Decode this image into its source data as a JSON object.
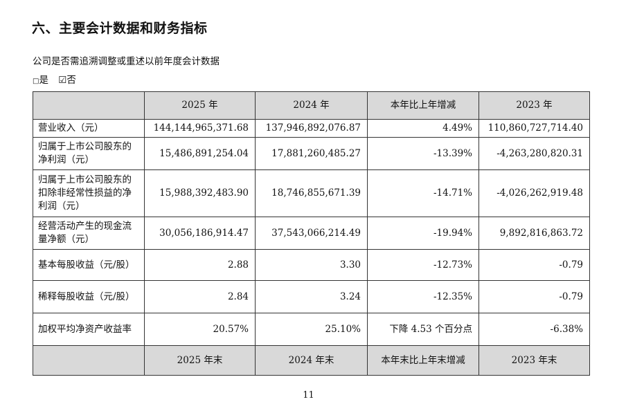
{
  "section_title": "六、主要会计数据和财务指标",
  "question": "公司是否需追溯调整或重述以前年度会计数据",
  "options": {
    "yes_box": "□",
    "yes": "是",
    "no_box": "☑",
    "no": "否"
  },
  "table": {
    "header": [
      "",
      "2025 年",
      "2024 年",
      "本年比上年增减",
      "2023 年"
    ],
    "rows": [
      [
        "营业收入（元）",
        "144,144,965,371.68",
        "137,946,892,076.87",
        "4.49%",
        "110,860,727,714.40"
      ],
      [
        "归属于上市公司股东的净利润（元）",
        "15,486,891,254.04",
        "17,881,260,485.27",
        "-13.39%",
        "-4,263,280,820.31"
      ],
      [
        "归属于上市公司股东的扣除非经常性损益的净利润（元）",
        "15,988,392,483.90",
        "18,746,855,671.39",
        "-14.71%",
        "-4,026,262,919.48"
      ],
      [
        "经营活动产生的现金流量净额（元）",
        "30,056,186,914.47",
        "37,543,066,214.49",
        "-19.94%",
        "9,892,816,863.72"
      ],
      [
        "基本每股收益（元/股）",
        "2.88",
        "3.30",
        "-12.73%",
        "-0.79"
      ],
      [
        "稀释每股收益（元/股）",
        "2.84",
        "3.24",
        "-12.35%",
        "-0.79"
      ],
      [
        "加权平均净资产收益率",
        "20.57%",
        "25.10%",
        "下降 4.53 个百分点",
        "-6.38%"
      ]
    ],
    "footer": [
      "",
      "2025 年末",
      "2024 年末",
      "本年末比上年末增减",
      "2023 年末"
    ]
  },
  "page_number": "11"
}
